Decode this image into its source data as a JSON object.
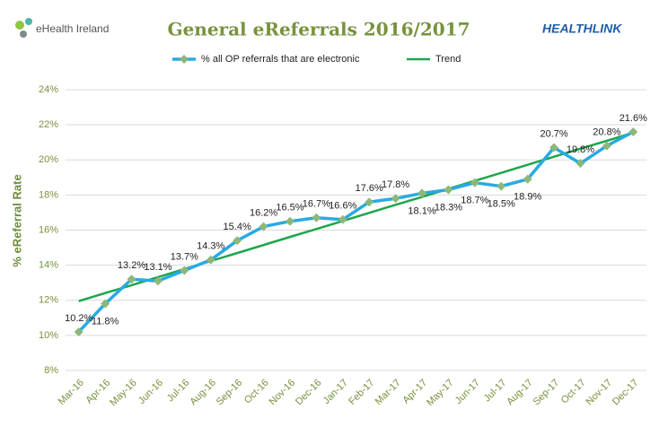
{
  "logos": {
    "left": "eHealth Ireland",
    "right": "HEALTHLINK"
  },
  "chart_data": {
    "type": "line",
    "title": "General eReferrals 2016/2017",
    "y_label": "% eReferral Rate",
    "categories": [
      "Mar-16",
      "Apr-16",
      "May-16",
      "Jun-16",
      "Jul-16",
      "Aug-16",
      "Sep-16",
      "Oct-16",
      "Nov-16",
      "Dec-16",
      "Jan-17",
      "Feb-17",
      "Mar-17",
      "Apr-17",
      "May-17",
      "Jun-17",
      "Jul-17",
      "Aug-17",
      "Sep-17",
      "Oct-17",
      "Nov-17",
      "Dec-17"
    ],
    "series": [
      {
        "name": "% all OP referrals that are electronic",
        "color": "#29aae1",
        "marker_color": "#8db87a",
        "values": [
          10.2,
          11.8,
          13.2,
          13.1,
          13.7,
          14.3,
          15.4,
          16.2,
          16.5,
          16.7,
          16.6,
          17.6,
          17.8,
          18.1,
          18.3,
          18.7,
          18.5,
          18.9,
          20.7,
          19.8,
          20.8,
          21.6
        ],
        "value_labels": [
          "10.2%",
          "11.8%",
          "13.2%",
          "13.1%",
          "13.7%",
          "14.3%",
          "15.4%",
          "16.2%",
          "16.5%",
          "16.7%",
          "16.6%",
          "17.6%",
          "17.8%",
          "18.1%",
          "18.3%",
          "18.7%",
          "18.5%",
          "18.9%",
          "20.7%",
          "19.8%",
          "20.8%",
          "21.6%"
        ]
      },
      {
        "name": "Trend",
        "color": "#1ea64c",
        "values": [
          11.95,
          12.41,
          12.86,
          13.32,
          13.78,
          14.24,
          14.69,
          15.15,
          15.61,
          16.06,
          16.52,
          16.98,
          17.44,
          17.89,
          18.35,
          18.81,
          19.26,
          19.72,
          20.18,
          20.64,
          21.09,
          21.55
        ]
      }
    ],
    "ylim": [
      8,
      24
    ],
    "yticks": [
      {
        "value": 8,
        "label": "8%"
      },
      {
        "value": 10,
        "label": "10%"
      },
      {
        "value": 12,
        "label": "12%"
      },
      {
        "value": 14,
        "label": "14%"
      },
      {
        "value": 16,
        "label": "16%"
      },
      {
        "value": 18,
        "label": "18%"
      },
      {
        "value": 20,
        "label": "20%"
      },
      {
        "value": 22,
        "label": "22%"
      },
      {
        "value": 24,
        "label": "24%"
      }
    ],
    "grid": true,
    "legend": "top"
  }
}
